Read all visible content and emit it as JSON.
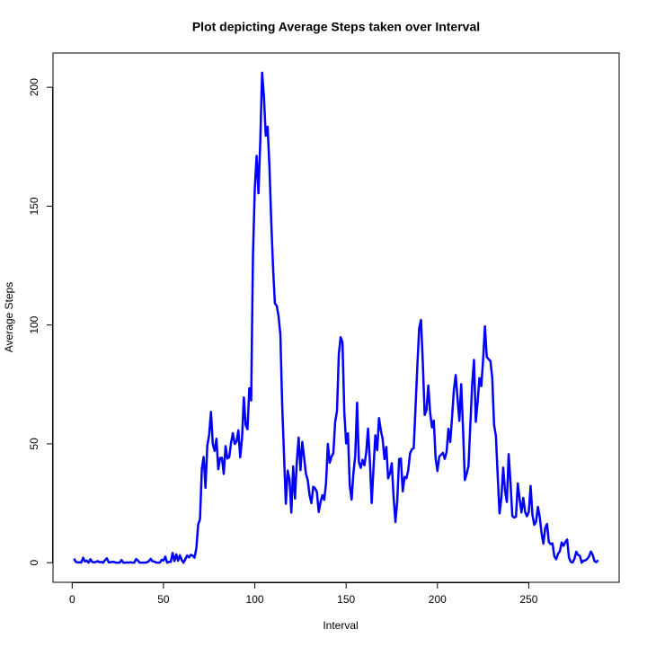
{
  "chart_data": {
    "type": "line",
    "title": "Plot depicting Average Steps taken over Interval",
    "x_label": "Interval",
    "y_label": "Average Steps",
    "xlim": [
      -10.48,
      299.48
    ],
    "ylim": [
      -8.25,
      214.42
    ],
    "xticks": [
      0,
      50,
      100,
      150,
      200,
      250
    ],
    "yticks": [
      0,
      50,
      100,
      150,
      200
    ],
    "series": [
      {
        "color": "#0000ff",
        "x": [
          1,
          2,
          3,
          4,
          5,
          6,
          7,
          8,
          9,
          10,
          11,
          12,
          13,
          14,
          15,
          16,
          17,
          18,
          19,
          20,
          21,
          22,
          23,
          24,
          25,
          26,
          27,
          28,
          29,
          30,
          31,
          32,
          33,
          34,
          35,
          36,
          37,
          38,
          39,
          40,
          41,
          42,
          43,
          44,
          45,
          46,
          47,
          48,
          49,
          50,
          51,
          52,
          53,
          54,
          55,
          56,
          57,
          58,
          59,
          60,
          61,
          62,
          63,
          64,
          65,
          66,
          67,
          68,
          69,
          70,
          71,
          72,
          73,
          74,
          75,
          76,
          77,
          78,
          79,
          80,
          81,
          82,
          83,
          84,
          85,
          86,
          87,
          88,
          89,
          90,
          91,
          92,
          93,
          94,
          95,
          96,
          97,
          98,
          99,
          100,
          101,
          102,
          103,
          104,
          105,
          106,
          107,
          108,
          109,
          110,
          111,
          112,
          113,
          114,
          115,
          116,
          117,
          118,
          119,
          120,
          121,
          122,
          123,
          124,
          125,
          126,
          127,
          128,
          129,
          130,
          131,
          132,
          133,
          134,
          135,
          136,
          137,
          138,
          139,
          140,
          141,
          142,
          143,
          144,
          145,
          146,
          147,
          148,
          149,
          150,
          151,
          152,
          153,
          154,
          155,
          156,
          157,
          158,
          159,
          160,
          161,
          162,
          163,
          164,
          165,
          166,
          167,
          168,
          169,
          170,
          171,
          172,
          173,
          174,
          175,
          176,
          177,
          178,
          179,
          180,
          181,
          182,
          183,
          184,
          185,
          186,
          187,
          188,
          189,
          190,
          191,
          192,
          193,
          194,
          195,
          196,
          197,
          198,
          199,
          200,
          201,
          202,
          203,
          204,
          205,
          206,
          207,
          208,
          209,
          210,
          211,
          212,
          213,
          214,
          215,
          216,
          217,
          218,
          219,
          220,
          221,
          222,
          223,
          224,
          225,
          226,
          227,
          228,
          229,
          230,
          231,
          232,
          233,
          234,
          235,
          236,
          237,
          238,
          239,
          240,
          241,
          242,
          243,
          244,
          245,
          246,
          247,
          248,
          249,
          250,
          251,
          252,
          253,
          254,
          255,
          256,
          257,
          258,
          259,
          260,
          261,
          262,
          263,
          264,
          265,
          266,
          267,
          268,
          269,
          270,
          271,
          272,
          273,
          274,
          275,
          276,
          277,
          278,
          279,
          280,
          281,
          282,
          283,
          284,
          285,
          286,
          287,
          288
        ],
        "values": [
          1.72,
          0.34,
          0.13,
          0.15,
          0.08,
          2.09,
          0.53,
          0.87,
          0,
          1.47,
          0.3,
          0.13,
          0.32,
          0.68,
          0.15,
          0.34,
          0,
          1.11,
          1.83,
          0.17,
          0.17,
          0.38,
          0.26,
          0,
          0,
          0,
          1.13,
          0,
          0,
          0.13,
          0,
          0.23,
          0,
          0,
          1.55,
          0.94,
          0,
          0,
          0,
          0,
          0.21,
          0.62,
          1.62,
          0.58,
          0.49,
          0.08,
          0,
          0,
          1.19,
          0.94,
          2.57,
          0,
          0.34,
          0.36,
          4.11,
          0.66,
          3.49,
          0.83,
          3.11,
          1.11,
          0,
          1.57,
          3,
          2.25,
          3.32,
          2.96,
          2.09,
          6.06,
          16.02,
          18.34,
          39.45,
          44.49,
          31.49,
          49.26,
          53.77,
          63.45,
          49.96,
          47.08,
          52.15,
          39.34,
          44.02,
          44.17,
          37.36,
          49.04,
          43.81,
          44.38,
          50.51,
          54.51,
          49.92,
          50.98,
          55.68,
          44.32,
          52.26,
          69.55,
          57.85,
          56.15,
          73.38,
          68.21,
          129.43,
          157.53,
          171.15,
          155.4,
          177.3,
          206.17,
          195.92,
          179.57,
          183.4,
          167.02,
          143.45,
          124.04,
          109.11,
          108.11,
          103.72,
          95.96,
          66.21,
          45.23,
          24.79,
          38.75,
          34.98,
          21.06,
          40.57,
          26.98,
          42.42,
          52.66,
          38.92,
          50.79,
          44.28,
          37.42,
          34.7,
          28.34,
          25.09,
          31.94,
          31.36,
          29.68,
          21.32,
          25.55,
          28.38,
          26.47,
          33.43,
          49.98,
          42.04,
          44.6,
          46.04,
          59.19,
          63.87,
          87.7,
          94.85,
          92.77,
          63.4,
          50.17,
          54.47,
          32.42,
          26.53,
          37.74,
          45.06,
          67.28,
          42.34,
          39.89,
          43.26,
          40.98,
          46.25,
          56.43,
          42.75,
          25.13,
          39.96,
          53.55,
          47.32,
          60.81,
          55.75,
          51.96,
          43.58,
          48.7,
          35.47,
          37.55,
          41.85,
          27.51,
          17.11,
          26.08,
          43.62,
          43.77,
          30.02,
          36.08,
          35.49,
          38.85,
          45.96,
          47.75,
          48.13,
          65.32,
          82.91,
          98.66,
          102.11,
          83.96,
          62.13,
          64.13,
          74.55,
          63.17,
          56.91,
          59.77,
          43.87,
          38.57,
          44.66,
          45.45,
          46.21,
          43.68,
          46.62,
          56.3,
          50.72,
          61.23,
          72.72,
          78.94,
          68.94,
          59.66,
          75.09,
          56.51,
          34.77,
          37.45,
          40.68,
          58.02,
          74.7,
          85.32,
          59.26,
          67.77,
          77.7,
          74.25,
          85.34,
          99.45,
          86.58,
          85.6,
          84.87,
          77.83,
          58.04,
          53.36,
          36.32,
          20.72,
          27.4,
          40.02,
          30.21,
          25.55,
          45.66,
          33.53,
          19.62,
          19.02,
          19.34,
          33.34,
          26.81,
          21.17,
          27.3,
          21.34,
          19.55,
          21.32,
          32.3,
          20.15,
          15.94,
          17.23,
          23.45,
          19.25,
          12.45,
          8.02,
          14.66,
          16.3,
          8.68,
          7.79,
          8.13,
          2.62,
          1.45,
          3.68,
          4.81,
          8.51,
          7.08,
          8.7,
          9.75,
          2.21,
          0.32,
          0.11,
          1.6,
          4.6,
          3.3,
          2.85,
          0,
          0.83,
          0.96,
          1.58,
          2.6,
          4.7,
          3.3,
          0.64,
          0.23,
          1.08
        ]
      }
    ]
  }
}
